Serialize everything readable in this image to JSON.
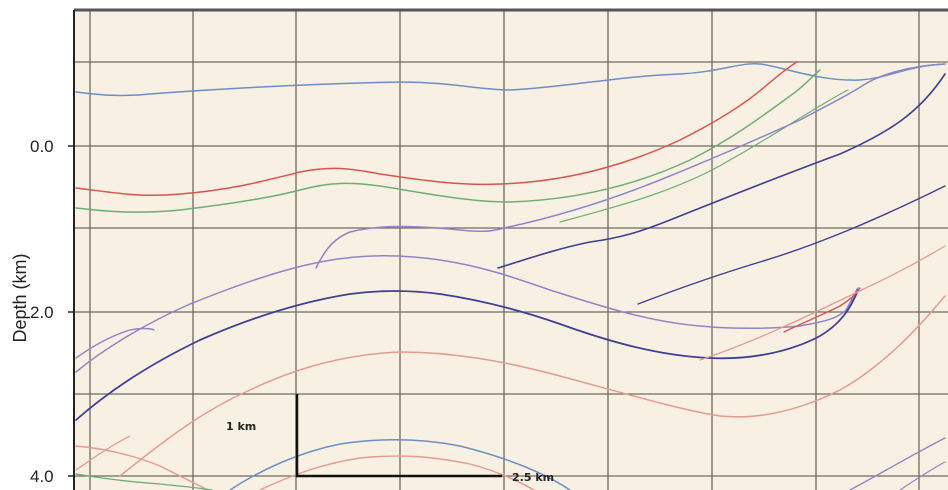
{
  "axis": {
    "y_title": "Depth (km)",
    "y_ticks": [
      "0.0",
      "2.0",
      "4.0"
    ]
  },
  "scale_bar": {
    "vertical_label": "1 km",
    "horizontal_label": "2.5 km"
  },
  "colors": {
    "background": "#f8f0e2",
    "grid": "#6f6a62",
    "frame": "#555555",
    "red": "#d9544c",
    "green": "#6cae72",
    "blue": "#6a8fc4",
    "purple": "#8d86c6",
    "navy": "#3e3f95",
    "pink": "#e59a90"
  }
}
